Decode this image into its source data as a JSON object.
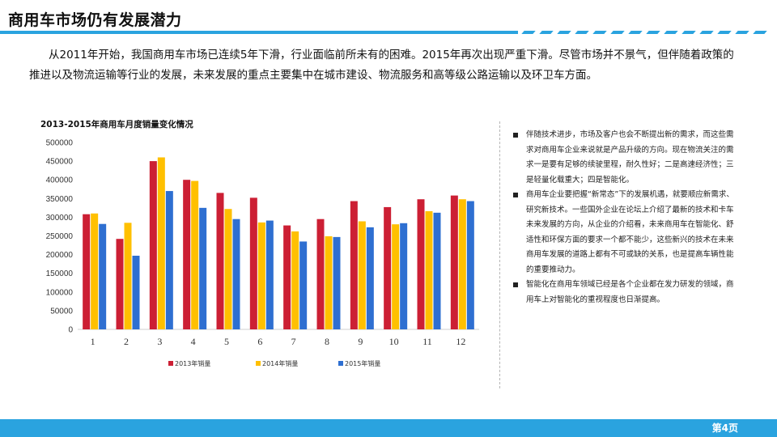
{
  "header": {
    "title": "商用车市场仍有发展潜力"
  },
  "intro": {
    "text": "从2011年开始，我国商用车市场已连续5年下滑，行业面临前所未有的困难。2015年再次出现严重下滑。尽管市场并不景气，但伴随着政策的推进以及物流运输等行业的发展，未来发展的重点主要集中在城市建设、物流服务和高等级公路运输以及环卫车方面。"
  },
  "chart_data": {
    "type": "bar",
    "title": "2013-2015年商用车月度销量变化情况",
    "xlabel": "",
    "ylabel": "",
    "categories": [
      "1",
      "2",
      "3",
      "4",
      "5",
      "6",
      "7",
      "8",
      "9",
      "10",
      "11",
      "12"
    ],
    "ylim": [
      0,
      500000
    ],
    "yticks": [
      "0",
      "50000",
      "100000",
      "150000",
      "200000",
      "250000",
      "300000",
      "350000",
      "400000",
      "450000",
      "500000"
    ],
    "grid": false,
    "legend": "bottom",
    "series": [
      {
        "name": "2013年销量",
        "color": "#cc1f34",
        "values": [
          308000,
          242000,
          450000,
          400000,
          365000,
          352000,
          278000,
          295000,
          343000,
          327000,
          348000,
          358000
        ]
      },
      {
        "name": "2014年销量",
        "color": "#ffc000",
        "values": [
          310000,
          285000,
          460000,
          397000,
          322000,
          286000,
          262000,
          249000,
          289000,
          281000,
          316000,
          348000
        ]
      },
      {
        "name": "2015年销量",
        "color": "#2e6fd1",
        "values": [
          282000,
          197000,
          370000,
          325000,
          295000,
          291000,
          235000,
          247000,
          273000,
          284000,
          312000,
          343000
        ]
      }
    ]
  },
  "side_points": [
    "伴随技术进步，市场及客户也会不断提出新的需求，而这些需求对商用车企业来说就是产品升级的方向。现在物流关注的需求一是要有足够的续驶里程，耐久性好；二是高速经济性；三是轻量化载重大；四是智能化。",
    "商用车企业要把握“新常态”下的发展机遇，就要顺应新需求、研究新技术。一些国外企业在论坛上介绍了最新的技术和卡车未来发展的方向，从企业的介绍看，未来商用车在智能化、舒适性和环保方面的要求一个都不能少，这些新兴的技术在未来商用车发展的道路上都有不可或缺的关系，也是提高车辆性能的重要推动力。",
    "智能化在商用车领域已经是各个企业都在发力研发的领域，商用车上对智能化的重视程度也日渐提高。"
  ],
  "footer": {
    "page": "第4页"
  }
}
